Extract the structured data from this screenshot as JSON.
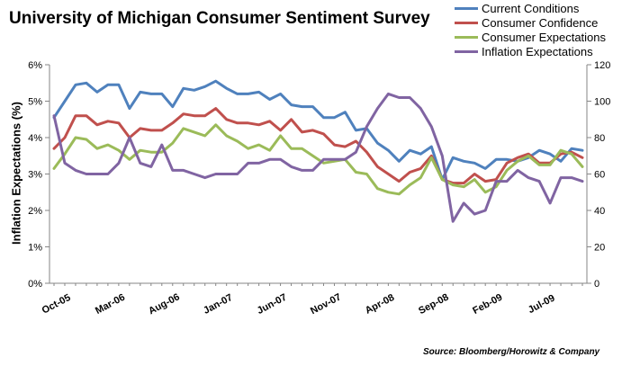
{
  "chart_data": {
    "type": "line",
    "title": "University of Michigan Consumer Sentiment Survey",
    "ylabel": "Inflation Expectations (%)",
    "source": "Source: Bloomberg/Horowitz & Company",
    "x_tick_labels": [
      "Oct-05",
      "Mar-06",
      "Aug-06",
      "Jan-07",
      "Jun-07",
      "Nov-07",
      "Apr-08",
      "Sep-08",
      "Feb-09",
      "Jul-09"
    ],
    "y_left": {
      "ticks": [
        "0%",
        "1%",
        "2%",
        "3%",
        "4%",
        "5%",
        "6%"
      ],
      "range": [
        0,
        6
      ]
    },
    "y_right": {
      "ticks": [
        "0",
        "20",
        "40",
        "60",
        "80",
        "100",
        "120"
      ],
      "range": [
        0,
        120
      ]
    },
    "grid": false,
    "legend_position": "top-right",
    "x": [
      "Oct-05",
      "Nov-05",
      "Dec-05",
      "Jan-06",
      "Feb-06",
      "Mar-06",
      "Apr-06",
      "May-06",
      "Jun-06",
      "Jul-06",
      "Aug-06",
      "Sep-06",
      "Oct-06",
      "Nov-06",
      "Dec-06",
      "Jan-07",
      "Feb-07",
      "Mar-07",
      "Apr-07",
      "May-07",
      "Jun-07",
      "Jul-07",
      "Aug-07",
      "Sep-07",
      "Oct-07",
      "Nov-07",
      "Dec-07",
      "Jan-08",
      "Feb-08",
      "Mar-08",
      "Apr-08",
      "May-08",
      "Jun-08",
      "Jul-08",
      "Aug-08",
      "Sep-08",
      "Oct-08",
      "Nov-08",
      "Dec-08",
      "Jan-09",
      "Feb-09",
      "Mar-09",
      "Apr-09",
      "May-09",
      "Jun-09",
      "Jul-09",
      "Aug-09",
      "Sep-09",
      "Oct-09",
      "Nov-09"
    ],
    "series": [
      {
        "name": "Current Conditions",
        "color": "#4f81bd",
        "axis": "right",
        "values": [
          91,
          100,
          109,
          110,
          105,
          109,
          109,
          96,
          105,
          104,
          104,
          97,
          107,
          106,
          108,
          111,
          107,
          104,
          104,
          105,
          101,
          104,
          98,
          97,
          97,
          91,
          91,
          94,
          84,
          85,
          77,
          73,
          67,
          73,
          71,
          75,
          57,
          69,
          67,
          66,
          63,
          68,
          68,
          67,
          69,
          73,
          71,
          67,
          74,
          73
        ]
      },
      {
        "name": "Consumer Confidence",
        "color": "#c0504d",
        "axis": "right",
        "values": [
          74,
          80,
          92,
          92,
          87,
          89,
          88,
          80,
          85,
          84,
          84,
          88,
          93,
          92,
          92,
          96,
          90,
          88,
          88,
          87,
          89,
          84,
          90,
          83,
          84,
          82,
          76,
          75,
          78,
          72,
          64,
          60,
          56,
          61,
          63,
          70,
          57,
          55,
          55,
          60,
          56,
          57,
          66,
          69,
          71,
          66,
          66,
          71,
          72,
          69
        ]
      },
      {
        "name": "Consumer Expectations",
        "color": "#9bbb59",
        "axis": "right",
        "values": [
          63,
          71,
          80,
          79,
          74,
          76,
          73,
          68,
          73,
          72,
          72,
          77,
          85,
          83,
          81,
          87,
          81,
          78,
          74,
          76,
          73,
          81,
          74,
          74,
          70,
          66,
          67,
          68,
          61,
          60,
          52,
          50,
          49,
          54,
          58,
          69,
          57,
          54,
          53,
          57,
          50,
          53,
          62,
          67,
          70,
          65,
          65,
          73,
          71,
          64
        ]
      },
      {
        "name": "Inflation Expectations",
        "color": "#8064a2",
        "axis": "left",
        "values": [
          4.6,
          3.3,
          3.1,
          3.0,
          3.0,
          3.0,
          3.3,
          4.0,
          3.3,
          3.2,
          3.8,
          3.1,
          3.1,
          3.0,
          2.9,
          3.0,
          3.0,
          3.0,
          3.3,
          3.3,
          3.4,
          3.4,
          3.2,
          3.1,
          3.1,
          3.4,
          3.4,
          3.4,
          3.6,
          4.3,
          4.8,
          5.2,
          5.1,
          5.1,
          4.8,
          4.3,
          3.5,
          1.7,
          2.2,
          1.9,
          2.0,
          2.8,
          2.8,
          3.1,
          2.9,
          2.8,
          2.2,
          2.9,
          2.9,
          2.8
        ]
      }
    ]
  }
}
